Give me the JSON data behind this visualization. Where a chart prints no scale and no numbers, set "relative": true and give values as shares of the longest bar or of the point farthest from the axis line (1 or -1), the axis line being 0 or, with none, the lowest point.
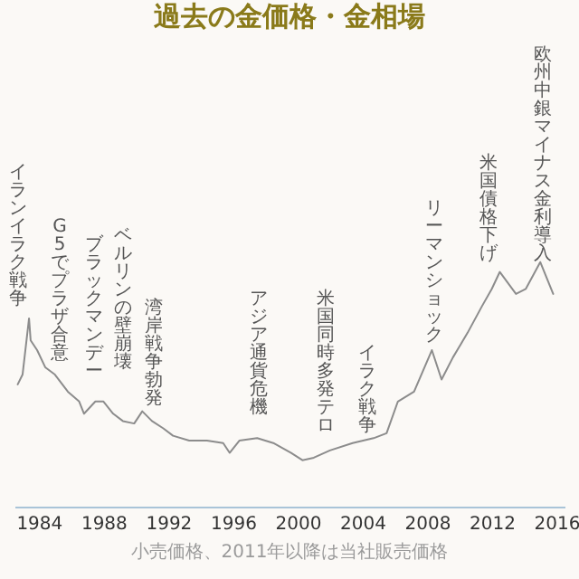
{
  "chart_data": {
    "type": "line",
    "title": "過去の金価格・金相場",
    "relative": true,
    "color": "#8c8c8c",
    "x": [
      1982.7,
      1983.0,
      1983.4,
      1983.5,
      1983.9,
      1984.4,
      1985.0,
      1985.8,
      1986.5,
      1986.8,
      1987.5,
      1988.0,
      1988.6,
      1989.2,
      1989.9,
      1990.4,
      1991.0,
      1991.7,
      1992.3,
      1993.3,
      1994.4,
      1995.4,
      1995.8,
      1996.4,
      1997.5,
      1998.5,
      1999.6,
      2000.3,
      2001.0,
      2002.0,
      2003.4,
      2004.7,
      2005.5,
      2006.2,
      2007.2,
      2008.3,
      2008.9,
      2009.6,
      2010.5,
      2011.4,
      2012.0,
      2012.5,
      2013.5,
      2014.1,
      2015.0,
      2015.8
    ],
    "values": [
      0.5,
      0.54,
      0.77,
      0.68,
      0.64,
      0.57,
      0.54,
      0.47,
      0.43,
      0.38,
      0.43,
      0.43,
      0.38,
      0.35,
      0.34,
      0.39,
      0.35,
      0.32,
      0.29,
      0.27,
      0.27,
      0.26,
      0.22,
      0.27,
      0.28,
      0.26,
      0.22,
      0.19,
      0.2,
      0.23,
      0.26,
      0.28,
      0.3,
      0.43,
      0.47,
      0.64,
      0.52,
      0.61,
      0.71,
      0.82,
      0.89,
      0.96,
      0.87,
      0.89,
      1.0,
      0.87
    ],
    "xlim": [
      1982.5,
      2016.5
    ],
    "xticks": [
      1984,
      1988,
      1992,
      1996,
      2000,
      2004,
      2008,
      2012,
      2016
    ],
    "annotations": [
      "イランイラク戦争",
      "G5でプラザ合意",
      "ブラックマンデー",
      "ベルリンの壁崩壊",
      "湾岸戦争勃発",
      "アジア通貨危機",
      "米国同時多発テロ",
      "イラク戦争",
      "リーマンショック",
      "米国債格下げ",
      "欧州中銀マイナス金利導入",
      "小売価格、2011年以降は当社販売価格"
    ]
  }
}
